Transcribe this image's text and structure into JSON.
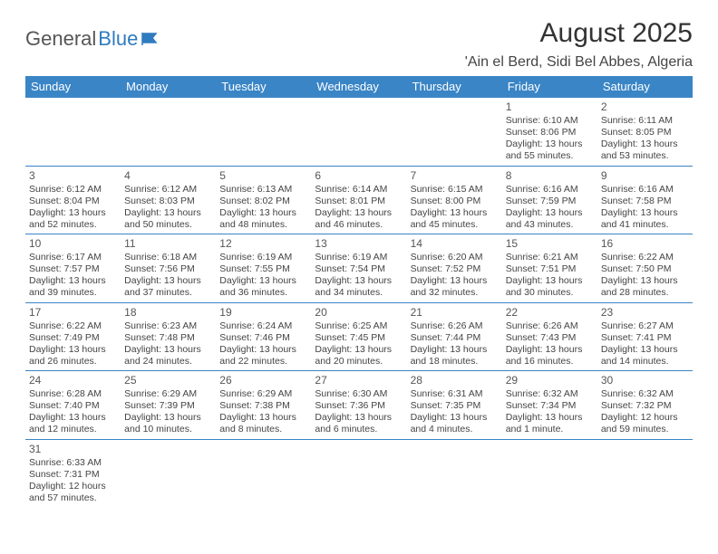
{
  "logo": {
    "text_general": "General",
    "text_blue": "Blue"
  },
  "header": {
    "month_title": "August 2025",
    "location": "'Ain el Berd, Sidi Bel Abbes, Algeria"
  },
  "colors": {
    "header_bg": "#3a85c6",
    "header_text": "#ffffff",
    "border": "#3a85c6",
    "body_text": "#444444",
    "title_text": "#333333",
    "logo_blue": "#2f7bbf",
    "logo_grey": "#555555"
  },
  "day_headers": [
    "Sunday",
    "Monday",
    "Tuesday",
    "Wednesday",
    "Thursday",
    "Friday",
    "Saturday"
  ],
  "weeks": [
    [
      null,
      null,
      null,
      null,
      null,
      {
        "n": "1",
        "sr": "Sunrise: 6:10 AM",
        "ss": "Sunset: 8:06 PM",
        "d1": "Daylight: 13 hours",
        "d2": "and 55 minutes."
      },
      {
        "n": "2",
        "sr": "Sunrise: 6:11 AM",
        "ss": "Sunset: 8:05 PM",
        "d1": "Daylight: 13 hours",
        "d2": "and 53 minutes."
      }
    ],
    [
      {
        "n": "3",
        "sr": "Sunrise: 6:12 AM",
        "ss": "Sunset: 8:04 PM",
        "d1": "Daylight: 13 hours",
        "d2": "and 52 minutes."
      },
      {
        "n": "4",
        "sr": "Sunrise: 6:12 AM",
        "ss": "Sunset: 8:03 PM",
        "d1": "Daylight: 13 hours",
        "d2": "and 50 minutes."
      },
      {
        "n": "5",
        "sr": "Sunrise: 6:13 AM",
        "ss": "Sunset: 8:02 PM",
        "d1": "Daylight: 13 hours",
        "d2": "and 48 minutes."
      },
      {
        "n": "6",
        "sr": "Sunrise: 6:14 AM",
        "ss": "Sunset: 8:01 PM",
        "d1": "Daylight: 13 hours",
        "d2": "and 46 minutes."
      },
      {
        "n": "7",
        "sr": "Sunrise: 6:15 AM",
        "ss": "Sunset: 8:00 PM",
        "d1": "Daylight: 13 hours",
        "d2": "and 45 minutes."
      },
      {
        "n": "8",
        "sr": "Sunrise: 6:16 AM",
        "ss": "Sunset: 7:59 PM",
        "d1": "Daylight: 13 hours",
        "d2": "and 43 minutes."
      },
      {
        "n": "9",
        "sr": "Sunrise: 6:16 AM",
        "ss": "Sunset: 7:58 PM",
        "d1": "Daylight: 13 hours",
        "d2": "and 41 minutes."
      }
    ],
    [
      {
        "n": "10",
        "sr": "Sunrise: 6:17 AM",
        "ss": "Sunset: 7:57 PM",
        "d1": "Daylight: 13 hours",
        "d2": "and 39 minutes."
      },
      {
        "n": "11",
        "sr": "Sunrise: 6:18 AM",
        "ss": "Sunset: 7:56 PM",
        "d1": "Daylight: 13 hours",
        "d2": "and 37 minutes."
      },
      {
        "n": "12",
        "sr": "Sunrise: 6:19 AM",
        "ss": "Sunset: 7:55 PM",
        "d1": "Daylight: 13 hours",
        "d2": "and 36 minutes."
      },
      {
        "n": "13",
        "sr": "Sunrise: 6:19 AM",
        "ss": "Sunset: 7:54 PM",
        "d1": "Daylight: 13 hours",
        "d2": "and 34 minutes."
      },
      {
        "n": "14",
        "sr": "Sunrise: 6:20 AM",
        "ss": "Sunset: 7:52 PM",
        "d1": "Daylight: 13 hours",
        "d2": "and 32 minutes."
      },
      {
        "n": "15",
        "sr": "Sunrise: 6:21 AM",
        "ss": "Sunset: 7:51 PM",
        "d1": "Daylight: 13 hours",
        "d2": "and 30 minutes."
      },
      {
        "n": "16",
        "sr": "Sunrise: 6:22 AM",
        "ss": "Sunset: 7:50 PM",
        "d1": "Daylight: 13 hours",
        "d2": "and 28 minutes."
      }
    ],
    [
      {
        "n": "17",
        "sr": "Sunrise: 6:22 AM",
        "ss": "Sunset: 7:49 PM",
        "d1": "Daylight: 13 hours",
        "d2": "and 26 minutes."
      },
      {
        "n": "18",
        "sr": "Sunrise: 6:23 AM",
        "ss": "Sunset: 7:48 PM",
        "d1": "Daylight: 13 hours",
        "d2": "and 24 minutes."
      },
      {
        "n": "19",
        "sr": "Sunrise: 6:24 AM",
        "ss": "Sunset: 7:46 PM",
        "d1": "Daylight: 13 hours",
        "d2": "and 22 minutes."
      },
      {
        "n": "20",
        "sr": "Sunrise: 6:25 AM",
        "ss": "Sunset: 7:45 PM",
        "d1": "Daylight: 13 hours",
        "d2": "and 20 minutes."
      },
      {
        "n": "21",
        "sr": "Sunrise: 6:26 AM",
        "ss": "Sunset: 7:44 PM",
        "d1": "Daylight: 13 hours",
        "d2": "and 18 minutes."
      },
      {
        "n": "22",
        "sr": "Sunrise: 6:26 AM",
        "ss": "Sunset: 7:43 PM",
        "d1": "Daylight: 13 hours",
        "d2": "and 16 minutes."
      },
      {
        "n": "23",
        "sr": "Sunrise: 6:27 AM",
        "ss": "Sunset: 7:41 PM",
        "d1": "Daylight: 13 hours",
        "d2": "and 14 minutes."
      }
    ],
    [
      {
        "n": "24",
        "sr": "Sunrise: 6:28 AM",
        "ss": "Sunset: 7:40 PM",
        "d1": "Daylight: 13 hours",
        "d2": "and 12 minutes."
      },
      {
        "n": "25",
        "sr": "Sunrise: 6:29 AM",
        "ss": "Sunset: 7:39 PM",
        "d1": "Daylight: 13 hours",
        "d2": "and 10 minutes."
      },
      {
        "n": "26",
        "sr": "Sunrise: 6:29 AM",
        "ss": "Sunset: 7:38 PM",
        "d1": "Daylight: 13 hours",
        "d2": "and 8 minutes."
      },
      {
        "n": "27",
        "sr": "Sunrise: 6:30 AM",
        "ss": "Sunset: 7:36 PM",
        "d1": "Daylight: 13 hours",
        "d2": "and 6 minutes."
      },
      {
        "n": "28",
        "sr": "Sunrise: 6:31 AM",
        "ss": "Sunset: 7:35 PM",
        "d1": "Daylight: 13 hours",
        "d2": "and 4 minutes."
      },
      {
        "n": "29",
        "sr": "Sunrise: 6:32 AM",
        "ss": "Sunset: 7:34 PM",
        "d1": "Daylight: 13 hours",
        "d2": "and 1 minute."
      },
      {
        "n": "30",
        "sr": "Sunrise: 6:32 AM",
        "ss": "Sunset: 7:32 PM",
        "d1": "Daylight: 12 hours",
        "d2": "and 59 minutes."
      }
    ],
    [
      {
        "n": "31",
        "sr": "Sunrise: 6:33 AM",
        "ss": "Sunset: 7:31 PM",
        "d1": "Daylight: 12 hours",
        "d2": "and 57 minutes."
      },
      null,
      null,
      null,
      null,
      null,
      null
    ]
  ]
}
